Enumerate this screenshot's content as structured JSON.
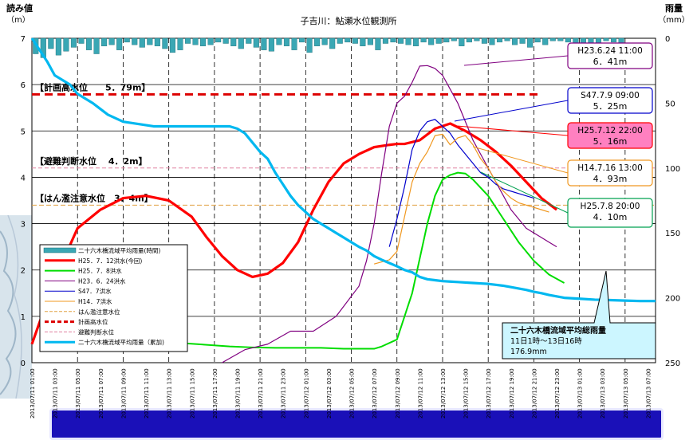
{
  "chart_data": {
    "type": "line",
    "title": "子吉川：鮎瀬水位観測所",
    "ylabel_left": "読み値",
    "ylabel_left_unit": "（m）",
    "ylabel_right": "雨量",
    "ylabel_right_unit": "（mm）",
    "ylim_left": [
      0,
      7
    ],
    "ylim_right": [
      250,
      0
    ],
    "yticks_left": [
      "0",
      "1",
      "2",
      "3",
      "4",
      "5",
      "6",
      "7"
    ],
    "yticks_right": [
      "0",
      "50",
      "100",
      "150",
      "200",
      "250"
    ],
    "x_labels": [
      "2013/07/11 01:00",
      "2013/07/11 03:00",
      "2013/07/11 05:00",
      "2013/07/11 07:00",
      "2013/07/11 09:00",
      "2013/07/11 11:00",
      "2013/07/11 13:00",
      "2013/07/11 15:00",
      "2013/07/11 17:00",
      "2013/07/11 19:00",
      "2013/07/11 21:00",
      "2013/07/11 23:00",
      "2013/07/12 01:00",
      "2013/07/12 03:00",
      "2013/07/12 05:00",
      "2013/07/12 07:00",
      "2013/07/12 09:00",
      "2013/07/12 11:00",
      "2013/07/12 13:00",
      "2013/07/12 15:00",
      "2013/07/12 17:00",
      "2013/07/12 19:00",
      "2013/07/12 21:00",
      "2013/07/12 23:00",
      "2013/07/13 01:00",
      "2013/07/13 03:00",
      "2013/07/13 05:00",
      "2013/07/13 07:00"
    ],
    "x_range_hours": [
      0,
      56
    ],
    "grid": true,
    "legend_position": "bottom-left",
    "legend": [
      {
        "name": "二十六木橋流域平均雨量(時間)",
        "color": "#3aa7b4",
        "style": "bar"
      },
      {
        "name": "H25．7．12洪水(今回)",
        "color": "#ff0000",
        "style": "thick"
      },
      {
        "name": "H25．7．8洪水",
        "color": "#00dd00",
        "style": "line"
      },
      {
        "name": "H23．6．24洪水",
        "color": "#800080",
        "style": "thin"
      },
      {
        "name": "S47．7洪水",
        "color": "#0000cc",
        "style": "thin"
      },
      {
        "name": "H14．7洪水",
        "color": "#f09820",
        "style": "thin"
      },
      {
        "name": "はん濫注意水位",
        "color": "#e0a040",
        "style": "dash"
      },
      {
        "name": "計画高水位",
        "color": "#dd0000",
        "style": "thickdash"
      },
      {
        "name": "避難判断水位",
        "color": "#e080a0",
        "style": "dash"
      },
      {
        "name": "二十六木橋流域平均雨量（累加)",
        "color": "#00b8f0",
        "style": "thick"
      }
    ],
    "reference_lines": [
      {
        "label": "【計画高水位　　5．79m】",
        "value": 5.79,
        "color": "#dd0000"
      },
      {
        "label": "【避難判断水位　 4．2m】",
        "value": 4.2,
        "color": "#e080a0"
      },
      {
        "label": "【はん濫注意水位　3．4m】",
        "value": 3.4,
        "color": "#e0a040"
      }
    ],
    "series": [
      {
        "name": "H25．7．12洪水(今回)",
        "color": "#ff0000",
        "width": 3.2,
        "x": [
          0,
          3,
          6,
          9,
          12,
          15,
          18,
          21,
          23,
          25,
          27,
          29,
          31,
          33,
          35,
          37,
          39,
          41,
          43,
          45,
          47,
          48,
          49,
          51,
          53,
          55,
          57,
          59,
          61,
          63,
          65,
          67,
          69
        ],
        "y": [
          0.4,
          1.8,
          2.9,
          3.3,
          3.55,
          3.6,
          3.5,
          3.15,
          2.7,
          2.3,
          2.0,
          1.85,
          1.92,
          2.15,
          2.6,
          3.3,
          3.9,
          4.3,
          4.5,
          4.65,
          4.7,
          4.72,
          4.72,
          4.8,
          5.05,
          5.16,
          5.0,
          4.8,
          4.55,
          4.25,
          3.9,
          3.55,
          3.3
        ]
      },
      {
        "name": "H25．7．8洪水",
        "color": "#00dd00",
        "width": 2,
        "x": [
          13,
          20,
          26,
          29,
          32,
          35,
          38,
          41,
          44,
          45,
          46,
          48,
          50,
          52,
          53,
          54,
          55,
          56,
          57,
          58,
          60,
          62,
          64,
          66,
          68,
          70
        ],
        "y": [
          0.45,
          0.42,
          0.35,
          0.33,
          0.32,
          0.32,
          0.32,
          0.3,
          0.3,
          0.3,
          0.35,
          0.5,
          1.5,
          3.0,
          3.6,
          3.95,
          4.05,
          4.1,
          4.08,
          3.95,
          3.6,
          3.1,
          2.6,
          2.2,
          1.9,
          1.72
        ]
      },
      {
        "name": "H23．6．24洪水",
        "color": "#800080",
        "width": 1.2,
        "x": [
          25,
          28,
          31,
          34,
          37,
          40,
          43,
          44,
          45,
          46,
          47,
          48,
          49,
          50,
          51,
          52,
          53,
          54,
          55,
          56,
          57,
          58,
          59,
          60,
          61,
          62,
          63,
          64,
          65,
          66,
          67,
          68,
          69
        ],
        "y": [
          0,
          0.28,
          0.4,
          0.68,
          0.68,
          1.0,
          1.65,
          2.2,
          3.0,
          4.1,
          5.1,
          5.6,
          5.75,
          6.05,
          6.4,
          6.41,
          6.35,
          6.2,
          5.9,
          5.6,
          5.2,
          4.8,
          4.5,
          4.2,
          3.9,
          3.6,
          3.3,
          3.1,
          2.9,
          2.8,
          2.7,
          2.6,
          2.5
        ]
      },
      {
        "name": "S47．7洪水",
        "color": "#0000cc",
        "width": 1.2,
        "x": [
          47,
          48,
          49,
          50,
          51,
          52,
          53,
          54,
          55,
          56,
          57,
          58,
          59,
          60,
          61,
          62,
          63,
          64,
          65,
          66
        ],
        "y": [
          2.5,
          3.1,
          3.8,
          4.6,
          5.0,
          5.2,
          5.25,
          5.1,
          4.95,
          4.7,
          4.5,
          4.3,
          4.1,
          4.0,
          3.85,
          3.75,
          3.7,
          3.65,
          3.6,
          3.55
        ]
      },
      {
        "name": "H14．7洪水",
        "color": "#f09820",
        "width": 1.2,
        "x": [
          45,
          47,
          48,
          50,
          51,
          52,
          53,
          54,
          55,
          56,
          57,
          58,
          59,
          60,
          61,
          62,
          63,
          64,
          65,
          66,
          67,
          68
        ],
        "y": [
          2.13,
          2.22,
          2.4,
          3.9,
          4.3,
          4.55,
          4.9,
          4.93,
          4.7,
          4.85,
          4.9,
          4.7,
          4.4,
          4.2,
          3.9,
          3.7,
          3.55,
          3.45,
          3.4,
          3.35,
          3.3,
          3.25
        ]
      },
      {
        "name": "二十六木橋流域平均雨量（累加)",
        "color": "#00b8f0",
        "width": 3.2,
        "x": [
          0,
          2,
          3,
          5,
          6,
          8,
          10,
          12,
          14,
          16,
          18,
          20,
          22,
          24,
          26,
          27,
          28,
          29,
          30,
          31,
          32,
          33,
          34,
          35,
          36,
          37,
          38,
          39,
          40,
          41,
          42,
          43,
          44,
          45,
          46,
          47,
          48,
          49,
          50,
          51,
          52,
          53,
          54,
          55,
          56,
          57,
          58,
          59,
          60,
          61,
          62,
          63,
          64,
          65,
          66,
          67,
          68,
          69,
          70,
          72,
          74,
          76,
          78,
          80,
          82
        ],
        "y": [
          7,
          6.5,
          6.2,
          6.0,
          5.8,
          5.6,
          5.35,
          5.2,
          5.15,
          5.1,
          5.1,
          5.1,
          5.1,
          5.1,
          5.1,
          5.05,
          4.95,
          4.75,
          4.55,
          4.4,
          4.1,
          3.85,
          3.6,
          3.4,
          3.25,
          3.1,
          3.0,
          2.9,
          2.8,
          2.7,
          2.6,
          2.5,
          2.42,
          2.3,
          2.22,
          2.15,
          2.08,
          2.0,
          1.95,
          1.85,
          1.8,
          1.78,
          1.76,
          1.75,
          1.74,
          1.73,
          1.72,
          1.71,
          1.7,
          1.68,
          1.66,
          1.63,
          1.6,
          1.57,
          1.53,
          1.5,
          1.46,
          1.43,
          1.4,
          1.38,
          1.36,
          1.35,
          1.34,
          1.33,
          1.33
        ]
      }
    ],
    "rain_bars_mm": [
      12,
      15,
      8,
      13,
      10,
      7,
      4,
      9,
      12,
      6,
      5,
      9,
      3,
      5,
      7,
      5,
      6,
      8,
      11,
      9,
      4,
      5,
      6,
      5,
      3,
      4,
      6,
      8,
      4,
      7,
      9,
      10,
      5,
      6,
      9,
      3,
      11,
      6,
      5,
      8,
      4,
      3,
      4,
      6,
      5,
      9,
      4,
      3,
      4,
      5,
      6,
      3,
      5,
      4,
      3,
      2,
      6,
      3,
      2,
      4,
      5,
      3,
      2,
      5,
      4,
      7,
      3,
      5,
      2,
      2,
      3,
      4,
      5,
      6,
      4,
      2,
      3,
      4
    ],
    "annotations": [
      {
        "date": "H23.6.24",
        "time": "11:00",
        "value": "6．41m",
        "fill": "#ffffff",
        "border": "#800080"
      },
      {
        "date": "S47.7.9",
        "time": "09:00",
        "value": "5．25m",
        "fill": "#ffffff",
        "border": "#0000cc"
      },
      {
        "date": "H25.7.12",
        "time": "22:00",
        "value": "5．16m",
        "fill": "#ff80c0",
        "border": "#ff0000"
      },
      {
        "date": "H14.7.16",
        "time": "13:00",
        "value": "4．93m",
        "fill": "#ffffff",
        "border": "#f09820"
      },
      {
        "date": "H25.7.8",
        "time": "20:00",
        "value": "4．10m",
        "fill": "#ffffff",
        "border": "#00a050"
      }
    ],
    "total_rain_callout": {
      "title": "二十六木橋流域平均総雨量",
      "period": "11日1時～13日16時",
      "amount": "176.9mm"
    }
  }
}
